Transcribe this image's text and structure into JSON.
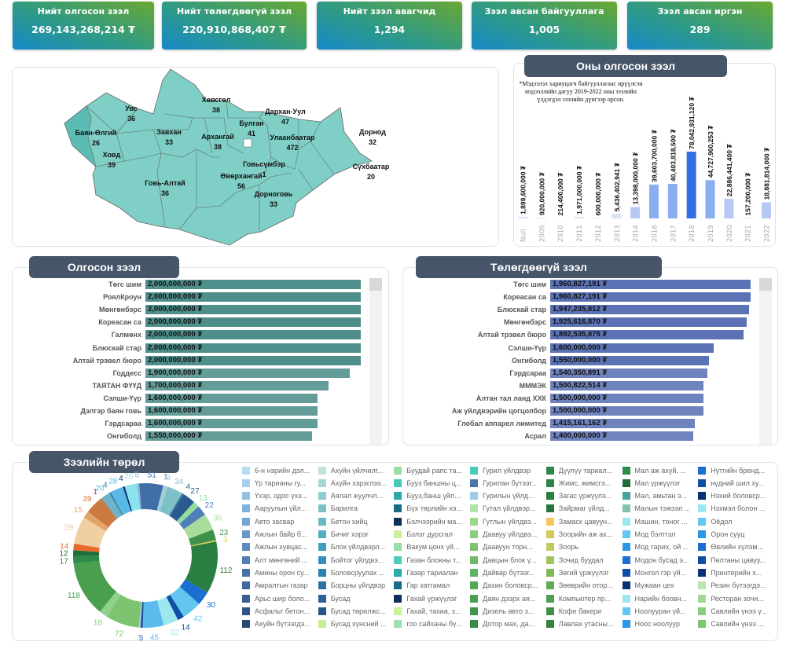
{
  "kpis": [
    {
      "title": "Нийт олгосон зээл",
      "value": "269,143,268,214 ₮"
    },
    {
      "title": "Нийт төлөгдөөгүй зээл",
      "value": "220,910,868,407 ₮"
    },
    {
      "title": "Нийт зээл авагчид",
      "value": "1,294"
    },
    {
      "title": "Зээл авсан байгууллага",
      "value": "1,005"
    },
    {
      "title": "Зээл авсан иргэн",
      "value": "289"
    }
  ],
  "map": {
    "regions": [
      {
        "name": "Увс",
        "count": "36"
      },
      {
        "name": "Баян-Өлгий",
        "count": "26"
      },
      {
        "name": "Ховд",
        "count": "39"
      },
      {
        "name": "Завхан",
        "count": "33"
      },
      {
        "name": "Говь-Алтай",
        "count": "36"
      },
      {
        "name": "Хөвсгөл",
        "count": "38"
      },
      {
        "name": "Архангай",
        "count": "38"
      },
      {
        "name": "Булган",
        "count": "41"
      },
      {
        "name": "Өвөрхангай",
        "count": "56"
      },
      {
        "name": "Дархан-Уул",
        "count": "47"
      },
      {
        "name": "Улаанбаатар",
        "count": "472"
      },
      {
        "name": "Говьсүмбэр",
        "count": "1"
      },
      {
        "name": "Дорноговь",
        "count": "33"
      },
      {
        "name": "Дорнод",
        "count": "32"
      },
      {
        "name": "Сүхбаатар",
        "count": "20"
      }
    ],
    "fill": "#7fcfc7",
    "highlight": "#5bbcb3"
  },
  "yearly": {
    "title": "Оны олгосон зээл",
    "note": "*Мэдээлэл хариуцагч байгууллагаас ирүүлсэн мэдээллийн дагуу 2019-2022 оны зээлийн үлдэгдэл зээлийн дүнгээр орсон.",
    "chart_data": {
      "type": "bar",
      "categories": [
        "Null",
        "2009",
        "2010",
        "2011",
        "2012",
        "2013",
        "2014",
        "2016",
        "2017",
        "2018",
        "2019",
        "2020",
        "2021",
        "2022"
      ],
      "values": [
        1899600000,
        920000000,
        214400000,
        1971000000,
        600000000,
        5436402941,
        13398000000,
        39603700000,
        40403818500,
        78042931120,
        44727960253,
        22886441400,
        157200000,
        18881814000
      ],
      "labels": [
        "1,899,600,000 ₮",
        "920,000,000 ₮",
        "214,400,000 ₮",
        "1,971,000,000 ₮",
        "600,000,000 ₮",
        "5,436,402,941 ₮",
        "13,398,000,000 ₮",
        "39,603,700,000 ₮",
        "40,403,818,500 ₮",
        "78,042,931,120 ₮",
        "44,727,960,253 ₮",
        "22,886,441,400 ₮",
        "157,200,000 ₮",
        "18,881,814,000 ₮"
      ]
    }
  },
  "issued": {
    "title": "Олгосон зээл",
    "color": "#4e8e8b",
    "chart_data": {
      "type": "bar",
      "orientation": "horizontal",
      "categories": [
        "Төгс шим",
        "РоялКроун",
        "Мөнгөнбэрс",
        "Кореасан са",
        "Галмөнх",
        "Блюскай стар",
        "Алтай трэвел бюро",
        "Годдесс",
        "ТАЯТАН ФҮҮД",
        "Сэлши-Үүр",
        "Дэлгэр баян говь",
        "Гэрдсараа",
        "Онгиболд"
      ],
      "values": [
        2000000000,
        2000000000,
        2000000000,
        2000000000,
        2000000000,
        2000000000,
        2000000000,
        1900000000,
        1700000000,
        1600000000,
        1600000000,
        1600000000,
        1550000000
      ],
      "labels": [
        "2,000,000,000 ₮",
        "2,000,000,000 ₮",
        "2,000,000,000 ₮",
        "2,000,000,000 ₮",
        "2,000,000,000 ₮",
        "2,000,000,000 ₮",
        "2,000,000,000 ₮",
        "1,900,000,000 ₮",
        "1,700,000,000 ₮",
        "1,600,000,000 ₮",
        "1,600,000,000 ₮",
        "1,600,000,000 ₮",
        "1,550,000,000 ₮"
      ]
    }
  },
  "unpaid": {
    "title": "Төлөгдөөгүй зээл",
    "color": "#5b72b5",
    "chart_data": {
      "type": "bar",
      "orientation": "horizontal",
      "categories": [
        "Төгс шим",
        "Кореасан са",
        "Блюскай стар",
        "Мөнгөнбэрс",
        "Алтай трэвел бюро",
        "Сэлши-Үүр",
        "Онгиболд",
        "Гэрдсараа",
        "МММЭК",
        "Алтан тал ланд ХХК",
        "Аж үйлдвэрийн цогцолбор",
        "Глобал аппарел лимитед",
        "Асрал"
      ],
      "values": [
        1960827191,
        1960827191,
        1947235812,
        1925616870,
        1892535875,
        1600000000,
        1550000000,
        1540350891,
        1500822514,
        1500000000,
        1500000000,
        1415161162,
        1400000000
      ],
      "labels": [
        "1,960,827,191 ₮",
        "1,960,827,191 ₮",
        "1,947,235,812 ₮",
        "1,925,616,870 ₮",
        "1,892,535,875 ₮",
        "1,600,000,000 ₮",
        "1,550,000,000 ₮",
        "1,540,350,891 ₮",
        "1,500,822,514 ₮",
        "1,500,000,000 ₮",
        "1,500,000,000 ₮",
        "1,415,161,162 ₮",
        "1,400,000,000 ₮"
      ]
    }
  },
  "types": {
    "title": "Зээлийн төрөл",
    "chart_data": {
      "type": "pie",
      "donut": true,
      "values": [
        5,
        51,
        1,
        9,
        34,
        4,
        27,
        13,
        22,
        36,
        23,
        3,
        112,
        30,
        42,
        14,
        32,
        45,
        5,
        3,
        72,
        18,
        118,
        17,
        12,
        14,
        59,
        15,
        39,
        1,
        20,
        4,
        28,
        4,
        26
      ],
      "colors": [
        "#8fb5d8",
        "#3f6fa6",
        "#5e86b8",
        "#a3cfd6",
        "#7ec0c7",
        "#2e6c9a",
        "#2a5a8f",
        "#8ee09a",
        "#4f7fb8",
        "#a7dc9a",
        "#3d9148",
        "#d8cc5a",
        "#2a7e41",
        "#1a6fd0",
        "#63c6ee",
        "#0e4ea6",
        "#9de8f0",
        "#5bbcec",
        "#1f4f9a",
        "#a9d6f0",
        "#7cc470",
        "#8fd08a",
        "#4a9f4f",
        "#2e8a4a",
        "#1f6e3a",
        "#e56a2b",
        "#f0cfa0",
        "#e3a468",
        "#cd7a40",
        "#b8452c",
        "#6fb3c7",
        "#2f86b0",
        "#5ab8e6",
        "#0a2f72",
        "#8be3ef"
      ]
    },
    "legend": [
      [
        "6-н нэрийн дэл...",
        "#b9dcf0"
      ],
      [
        "Үр тарианы гу...",
        "#a6cfea"
      ],
      [
        "Үхэр, одос үхэ...",
        "#93c2e3"
      ],
      [
        "Ааруулын үйл...",
        "#80b3db"
      ],
      [
        "Авто засвар",
        "#72a5d3"
      ],
      [
        "Ажлын байр б...",
        "#6598c9"
      ],
      [
        "Ажлын хувцас...",
        "#5a8bbf"
      ],
      [
        "Алт мөнгөний ...",
        "#507fb4"
      ],
      [
        "Амины орон су...",
        "#4873a8"
      ],
      [
        "Амралтын газар",
        "#41689c"
      ],
      [
        "Арьс шир боло...",
        "#3a5e90"
      ],
      [
        "Асфальт бетон...",
        "#325384"
      ],
      [
        "Ахуйн бүтээгдэ...",
        "#2a4877"
      ],
      [
        "Ахуйн үйлчилг...",
        "#bfe3dc"
      ],
      [
        "Ахуйн хэрэглээ...",
        "#a8d8d2"
      ],
      [
        "Аялал жуулчл...",
        "#8fcdc8"
      ],
      [
        "Барилга",
        "#7cc2c4"
      ],
      [
        "Бетон хийц",
        "#69b8c2"
      ],
      [
        "Бичиг хэрэг",
        "#53aec0"
      ],
      [
        "Блок үйлдвэрл...",
        "#3f9fbf"
      ],
      [
        "Бойтог үйлдвэ...",
        "#3490bb"
      ],
      [
        "Боловсруулах ...",
        "#2d81b0"
      ],
      [
        "Борцны үйлдвэр",
        "#2a72a2"
      ],
      [
        "Бусад",
        "#2b6398"
      ],
      [
        "Бусад төрөлжс...",
        "#2b5589"
      ],
      [
        "Бусад хүнсний ...",
        "#c6ef94"
      ],
      [
        "Буудай рапс та...",
        "#9ddf9f"
      ],
      [
        "Бууз баншны ц...",
        "#48cbb5"
      ],
      [
        "Бууз,банш үйл...",
        "#2aa9a9"
      ],
      [
        "Бүх төрлийн хэ...",
        "#176b87"
      ],
      [
        "Бэлчээрийн ма...",
        "#0a2f5c"
      ],
      [
        "Бэлэг дурсгал",
        "#ccf09a"
      ],
      [
        "Вакум цонх үй...",
        "#94e0a4"
      ],
      [
        "Газан блокны т...",
        "#4ccdb5"
      ],
      [
        "Газар тариалан",
        "#2baaa9"
      ],
      [
        "Гар хатгамал",
        "#176b87"
      ],
      [
        "Гахай үржүүлэг",
        "#0a2f5c"
      ],
      [
        "Гахай, тахиа, з...",
        "#c8f296"
      ],
      [
        "гоо сайханы бү...",
        "#9ee0a7"
      ],
      [
        "Гурил үйлдвэр",
        "#48cdb8"
      ],
      [
        "Гурилан бүтээг...",
        "#4d76a8"
      ],
      [
        "Гурилын үйлд...",
        "#9dcbea"
      ],
      [
        "Гутал үйлдвэр...",
        "#b5e2a6"
      ],
      [
        "Гутлын үйлдвэ...",
        "#9ed98e"
      ],
      [
        "Даавуу үйлдвэ...",
        "#8ccd7d"
      ],
      [
        "Даавуун торн...",
        "#7cc470"
      ],
      [
        "Давцын блок ү...",
        "#6dbb66"
      ],
      [
        "Дайвар бүтээг...",
        "#5fb35e"
      ],
      [
        "Дахин боловср...",
        "#54a957"
      ],
      [
        "Даян дээрх ая...",
        "#4aa051"
      ],
      [
        "Дизель авто з...",
        "#41964c"
      ],
      [
        "Дотор мах, да...",
        "#378b47"
      ],
      [
        "Дүүпүү тариал...",
        "#2f8747"
      ],
      [
        "Жимс, жимсгэ...",
        "#2d8344"
      ],
      [
        "Загас үржүүлэ...",
        "#2a7e41"
      ],
      [
        "Зайрмаг үйлд...",
        "#27733d"
      ],
      [
        "Замаск цавуун...",
        "#f6c85f"
      ],
      [
        "Зоорийн аж ах...",
        "#d5c857"
      ],
      [
        "Зоорь",
        "#bfca5e"
      ],
      [
        "Зочид буудал",
        "#9fc45a"
      ],
      [
        "Зөгий үржүүлэг",
        "#80b955"
      ],
      [
        "Зөөврийн отор...",
        "#63aa54"
      ],
      [
        "Компьютер пр...",
        "#4f9d4f"
      ],
      [
        "Кофе бакери",
        "#3d914a"
      ],
      [
        "Лавлах утасны...",
        "#33843f"
      ],
      [
        "Мал аж ахуй, ...",
        "#2e8a4a"
      ],
      [
        "Мал үржүүлэг",
        "#1f6e3a"
      ],
      [
        "Мал, амьтан э...",
        "#4aa39a"
      ],
      [
        "Малын тэжээл ...",
        "#80c3b2"
      ],
      [
        "Машин, тоног ...",
        "#9de8f0"
      ],
      [
        "Мод бэлтгэл",
        "#63c6ee"
      ],
      [
        "Мод тарих, ой ...",
        "#2b98e6"
      ],
      [
        "Модон бусад э...",
        "#1a6fd0"
      ],
      [
        "Монгол гэр үй...",
        "#0e4ea6"
      ],
      [
        "Мужаан цех",
        "#0a2f72"
      ],
      [
        "Нарийн боовн...",
        "#9de8f0"
      ],
      [
        "Ноолууран үй...",
        "#63c6ee"
      ],
      [
        "Ноос ноолуур",
        "#2b98e6"
      ],
      [
        "Нутгийн бренд...",
        "#1a6fd0"
      ],
      [
        "нүдний шил ху...",
        "#0e4ea6"
      ],
      [
        "Нэхий боловср...",
        "#0a2f72"
      ],
      [
        "Нэхмэл болон ...",
        "#9de8f0"
      ],
      [
        "Оёдол",
        "#63c6ee"
      ],
      [
        "Орон сууц",
        "#2b98e6"
      ],
      [
        "Өвлийн хүлэм...",
        "#1a6fd0"
      ],
      [
        "Пелтаны цавуу...",
        "#0e4ea6"
      ],
      [
        "Принтерийн х...",
        "#0a2f72"
      ],
      [
        "Резин бүтээгдэ...",
        "#b9e3b0"
      ],
      [
        "Ресторан зочи...",
        "#a3d996"
      ],
      [
        "Савлийн үнээ ү...",
        "#8ccd7d"
      ],
      [
        "Савлийн үнээ ...",
        "#7cc470"
      ]
    ]
  }
}
